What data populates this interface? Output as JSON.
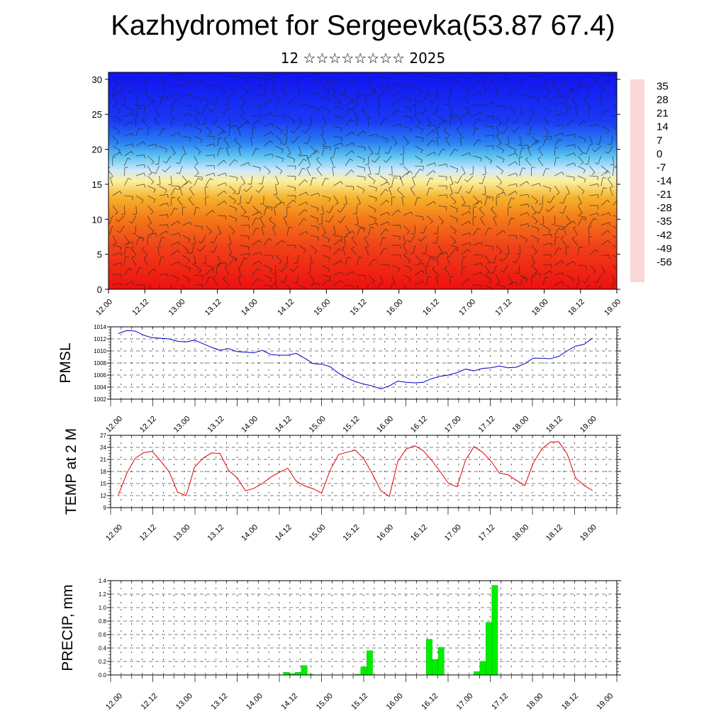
{
  "title": "Kazhydromet for Sergeevka(53.87 67.4)",
  "subtitle": "12 ☆☆☆☆☆☆☆☆ 2025",
  "time_labels": [
    "12.00",
    "12.12",
    "13.00",
    "13.12",
    "14.00",
    "14.12",
    "15.00",
    "15.12",
    "16.00",
    "16.12",
    "17.00",
    "17.12",
    "18.00",
    "18.12",
    "19.00"
  ],
  "colors": {
    "pmsl_line": "#0000cc",
    "temp_line": "#e00000",
    "precip_bar": "#00ee00"
  },
  "chart_data": [
    {
      "type": "heatmap",
      "title": "",
      "xlabel": "",
      "ylabel": "",
      "ylim": [
        0,
        31
      ],
      "yticks": [
        "0",
        "5",
        "10",
        "15",
        "20",
        "25",
        "30"
      ],
      "colorbar": {
        "labels": [
          "35",
          "28",
          "21",
          "14",
          "7",
          "0",
          "-7",
          "-14",
          "-21",
          "-28",
          "-35",
          "-42",
          "-49",
          "-56"
        ],
        "range": [
          -63,
          42
        ],
        "stops": [
          {
            "v": 42,
            "c": "#fcd6d6"
          },
          {
            "v": 35,
            "c": "#ee2020"
          },
          {
            "v": 20,
            "c": "#ee1a10"
          },
          {
            "v": 10,
            "c": "#f56a10"
          },
          {
            "v": 0,
            "c": "#f6a81e"
          },
          {
            "v": -8,
            "c": "#fde34a"
          },
          {
            "v": -13,
            "c": "#fef6c8"
          },
          {
            "v": -17,
            "c": "#d6eefa"
          },
          {
            "v": -26,
            "c": "#2ab4ee"
          },
          {
            "v": -38,
            "c": "#1a5ef0"
          },
          {
            "v": -52,
            "c": "#1a18f5"
          },
          {
            "v": -63,
            "c": "#8a2be8"
          }
        ]
      },
      "overlay": "wind-barbs"
    },
    {
      "type": "line",
      "ylabel": "PMSL",
      "ylim": [
        1002,
        1014
      ],
      "yticks": [
        "1002",
        "1004",
        "1006",
        "1008",
        "1010",
        "1012",
        "1014"
      ],
      "grid": true,
      "series": [
        {
          "values": [
            1012.9,
            1013.4,
            1013.3,
            1012.6,
            1012.2,
            1012.1,
            1012.0,
            1011.6,
            1011.5,
            1011.8,
            1011.2,
            1010.6,
            1010.1,
            1010.4,
            1009.9,
            1009.8,
            1009.7,
            1010.1,
            1009.4,
            1009.3,
            1009.3,
            1009.6,
            1008.8,
            1007.9,
            1007.8,
            1007.4,
            1006.3,
            1005.5,
            1004.9,
            1004.5,
            1004.2,
            1003.7,
            1004.2,
            1005.0,
            1004.8,
            1004.7,
            1004.8,
            1005.4,
            1005.8,
            1006.0,
            1006.4,
            1007.0,
            1006.7,
            1007.1,
            1007.2,
            1007.5,
            1007.2,
            1007.3,
            1007.9,
            1008.8,
            1008.8,
            1008.7,
            1009.1,
            1010.0,
            1010.8,
            1011.1,
            1012.1
          ]
        }
      ]
    },
    {
      "type": "line",
      "ylabel": "TEMP at 2 M",
      "ylim": [
        9,
        27
      ],
      "yticks": [
        "9",
        "12",
        "15",
        "18",
        "21",
        "24",
        "27"
      ],
      "grid": true,
      "series": [
        {
          "values": [
            12.2,
            17.6,
            21.3,
            22.7,
            23.0,
            20.6,
            17.9,
            12.8,
            12.0,
            19.1,
            21.3,
            22.6,
            22.5,
            18.3,
            16.5,
            13.2,
            13.8,
            15.0,
            16.6,
            17.8,
            18.8,
            15.6,
            14.4,
            13.7,
            12.6,
            18.3,
            22.2,
            22.8,
            23.3,
            21.1,
            17.4,
            13.2,
            11.8,
            20.5,
            23.6,
            24.4,
            23.2,
            20.8,
            18.0,
            15.0,
            14.2,
            20.8,
            24.2,
            22.8,
            20.6,
            17.6,
            17.2,
            15.8,
            14.5,
            20.1,
            23.6,
            25.3,
            25.4,
            22.4,
            16.4,
            14.5,
            13.3
          ]
        }
      ]
    },
    {
      "type": "bar",
      "ylabel": "PRECIP, mm",
      "ylim": [
        0,
        1.4
      ],
      "yticks": [
        "0.0",
        "0.2",
        "0.4",
        "0.6",
        "0.8",
        "1.0",
        "1.2",
        "1.4"
      ],
      "grid": true,
      "series": [
        {
          "values": [
            0,
            0,
            0,
            0,
            0,
            0,
            0,
            0,
            0,
            0,
            0,
            0,
            0,
            0,
            0,
            0,
            0,
            0,
            0,
            0,
            0,
            0,
            0,
            0,
            0,
            0,
            0,
            0,
            0,
            0.04,
            0.02,
            0.04,
            0.14,
            0.01,
            0,
            0,
            0,
            0,
            0,
            0,
            0,
            0.01,
            0.12,
            0.36,
            0,
            0,
            0,
            0,
            0,
            0,
            0,
            0,
            0,
            0.53,
            0.23,
            0.41,
            0,
            0,
            0,
            0,
            0,
            0.05,
            0.2,
            0.78,
            1.33,
            0,
            0,
            0,
            0,
            0,
            0,
            0,
            0,
            0,
            0,
            0,
            0,
            0,
            0,
            0,
            0,
            0,
            0,
            0,
            0
          ]
        }
      ]
    }
  ]
}
